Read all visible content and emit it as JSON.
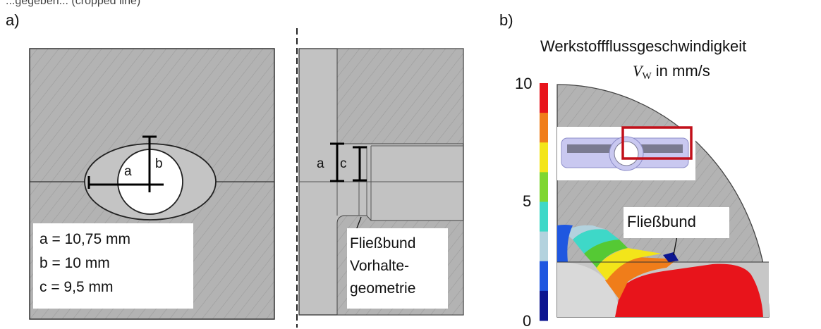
{
  "top_clipped": "...gegeben... (cropped line)",
  "panel_a": {
    "label": "a)",
    "front": {
      "dim_a": "a",
      "dim_b": "b",
      "specs": [
        "a = 10,75 mm",
        "b = 10 mm",
        "c = 9,5 mm"
      ]
    },
    "side": {
      "dim_a": "a",
      "dim_c": "c",
      "callout": [
        "Fließbund",
        "Vorhalte-",
        "geometrie"
      ]
    }
  },
  "panel_b": {
    "label": "b)",
    "title": "Werkstoffflussgeschwindigkeit",
    "unit_symbol": "V",
    "unit_subscript": "W",
    "unit_text": " in mm/s",
    "scale_ticks": [
      "10",
      "5",
      "0"
    ],
    "scale_colors": [
      "#e8141b",
      "#f07d1a",
      "#f3e51a",
      "#7fd631",
      "#3ed8c8",
      "#b3d2de",
      "#1f57e0",
      "#0c1590"
    ],
    "callout": "Fließbund"
  }
}
